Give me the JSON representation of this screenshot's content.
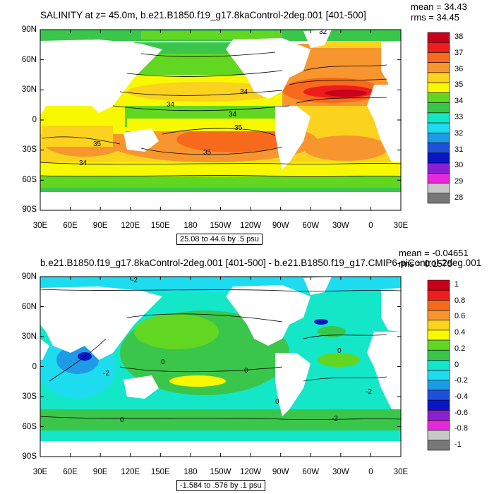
{
  "panel1": {
    "title": "SALINITY at z=  45.0m, b.e21.B1850.f19_g17.8kaControl-2deg.001 [401-500]",
    "mean": "mean = 34.43",
    "rms": "rms = 34.45",
    "range_label": "25.08 to 44.6 by .5 psu",
    "contour_labels": [
      "32",
      "34",
      "34",
      "34",
      "35",
      "35",
      "35",
      "34"
    ],
    "colorbar": {
      "labels": [
        "38",
        "37",
        "36",
        "35",
        "34",
        "33",
        "32",
        "31",
        "30",
        "29",
        "28"
      ],
      "colors": [
        "#c8001a",
        "#ee1c1c",
        "#f76a1c",
        "#f7962e",
        "#fbd21e",
        "#f8f800",
        "#62d722",
        "#3ac64a",
        "#14e6c8",
        "#1edcf0",
        "#1e9be6",
        "#1e50dc",
        "#0a14c8",
        "#8a1ed2",
        "#e628dc",
        "#c8c8c8",
        "#787878"
      ]
    }
  },
  "panel2": {
    "title": "b.e21.B1850.f19_g17.8kaControl-2deg.001 [401-500] - b.e21.B1850.f19_g17.CMIP6-piControl-2deg.001",
    "mean": "mean = -0.04651",
    "rms": "rms = 0.1575",
    "range_label": "-1.584 to .576 by .1 psu",
    "contour_labels": [
      "-2",
      "-2",
      "0",
      "0",
      "-2",
      "0",
      "0",
      "0",
      "-2"
    ],
    "colorbar": {
      "labels": [
        "1",
        "0.8",
        "0.6",
        "0.4",
        "0.2",
        "0",
        "-0.2",
        "-0.4",
        "-0.6",
        "-0.8",
        "-1"
      ],
      "colors": [
        "#c8001a",
        "#ee1c1c",
        "#f76a1c",
        "#f7962e",
        "#fbd21e",
        "#f8f800",
        "#62d722",
        "#3ac64a",
        "#14e6c8",
        "#1edcf0",
        "#1e9be6",
        "#1e50dc",
        "#0a14c8",
        "#8a1ed2",
        "#e628dc",
        "#c8c8c8",
        "#787878"
      ]
    }
  },
  "axes": {
    "lat_labels": [
      "90N",
      "60N",
      "30N",
      "0",
      "30S",
      "60S",
      "90S"
    ],
    "lon_labels": [
      "30E",
      "60E",
      "90E",
      "120E",
      "150E",
      "180",
      "150W",
      "120W",
      "90W",
      "60W",
      "30W",
      "0",
      "30E"
    ]
  }
}
